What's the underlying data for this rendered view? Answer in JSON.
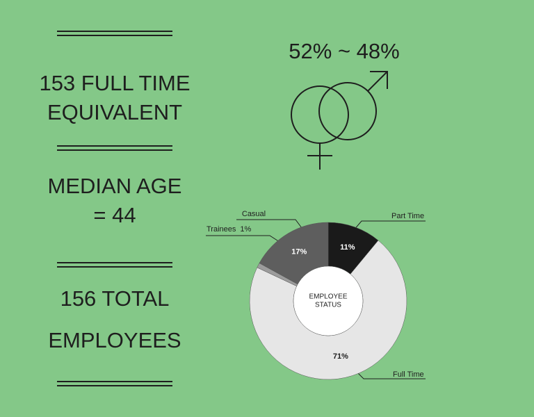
{
  "left_stats": [
    {
      "lines": [
        "153 FULL TIME",
        "EQUIVALENT"
      ]
    },
    {
      "lines": [
        "MEDIAN AGE",
        "= 44"
      ]
    },
    {
      "lines": [
        "156 TOTAL",
        "EMPLOYEES"
      ]
    }
  ],
  "gender": {
    "text": "52% ~ 48%"
  },
  "chart_data": {
    "type": "donut",
    "center_label": [
      "EMPLOYEE",
      "STATUS"
    ],
    "categories": [
      "Part Time",
      "Full Time",
      "Trainees",
      "Casual"
    ],
    "values": [
      11,
      71,
      1,
      17
    ],
    "value_labels": [
      "11%",
      "71%",
      "1%",
      "17%"
    ],
    "colors": [
      "#1a1a1a",
      "#e6e6e6",
      "#9c9c9c",
      "#5e5e5e"
    ],
    "label_colors": [
      "#ffffff",
      "#1e1e1e",
      "#1e1e1e",
      "#ffffff"
    ]
  }
}
